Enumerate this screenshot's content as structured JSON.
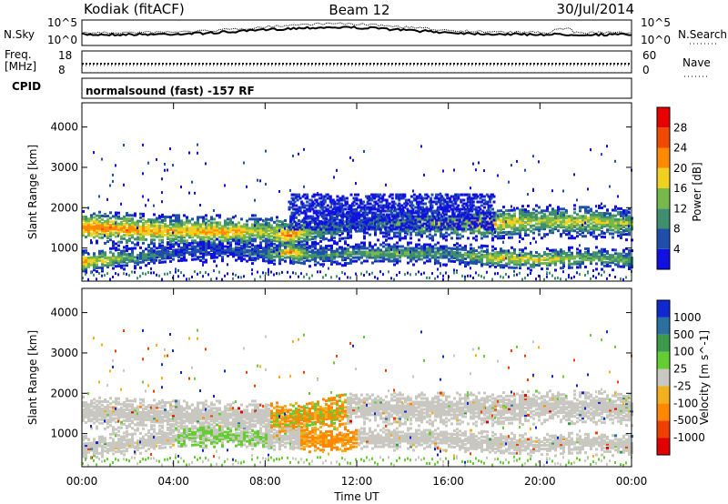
{
  "header": {
    "station": "Kodiak (fitACF)",
    "beam": "Beam 12",
    "date": "30/Jul/2014"
  },
  "strips": {
    "nsky_label": "N.Sky",
    "nsearch_label": "N.Search",
    "nsky_ticks": [
      "10^5",
      "10^0"
    ],
    "nsearch_ticks": [
      "10^5",
      "10^0"
    ],
    "freq_label_1": "Freq.",
    "freq_label_2": "[MHz]",
    "freq_ticks": [
      "18",
      "8"
    ],
    "nave_label": "Nave",
    "nave_ticks": [
      "60",
      "0"
    ],
    "cpid_label": "CPID",
    "cpid_text": "normalsound (fast) -157 RF"
  },
  "chart_data": [
    {
      "type": "heatmap",
      "panel": "power",
      "ylabel": "Slant Range [km]",
      "ylim": [
        180,
        4600
      ],
      "yticks": [
        "1000",
        "2000",
        "3000",
        "4000"
      ],
      "xlim": [
        "00:00",
        "24:00"
      ],
      "colorbar_label": "Power [dB]",
      "colorbar_ticks": [
        "4",
        "8",
        "12",
        "16",
        "20",
        "24",
        "28"
      ],
      "colors": [
        "#1010e0",
        "#1f4fa8",
        "#3f8f6f",
        "#76b84c",
        "#f0d020",
        "#ff8a00",
        "#f04a00",
        "#e80000"
      ],
      "bands": [
        {
          "name": "upper",
          "x": [
            0,
            2,
            4,
            6,
            8,
            9,
            10,
            12,
            14,
            16,
            18,
            20,
            22,
            24
          ],
          "center_km": [
            1550,
            1500,
            1450,
            1450,
            1450,
            1350,
            1500,
            1650,
            1650,
            1650,
            1650,
            1700,
            1700,
            1650
          ],
          "width_km": 300,
          "peak_db": [
            26,
            25,
            22,
            24,
            18,
            26,
            16,
            10,
            16,
            20,
            22,
            18,
            20,
            16
          ]
        },
        {
          "name": "lower",
          "x": [
            0,
            2,
            4,
            6,
            8,
            9,
            10,
            12,
            14,
            16,
            18,
            20,
            22,
            24
          ],
          "center_km": [
            700,
            800,
            900,
            1000,
            900,
            950,
            850,
            900,
            900,
            900,
            800,
            750,
            800,
            750
          ],
          "width_km": 200,
          "peak_db": [
            24,
            14,
            8,
            8,
            10,
            26,
            12,
            14,
            16,
            12,
            20,
            20,
            16,
            14
          ]
        }
      ]
    },
    {
      "type": "heatmap",
      "panel": "velocity",
      "ylabel": "Slant Range [km]",
      "ylim": [
        180,
        4600
      ],
      "yticks": [
        "1000",
        "2000",
        "3000",
        "4000"
      ],
      "xlim": [
        "00:00",
        "24:00"
      ],
      "xticks": [
        "00:00",
        "04:00",
        "08:00",
        "12:00",
        "16:00",
        "20:00",
        "00:00"
      ],
      "xlabel": "Time UT",
      "colorbar_label": "Velocity [m s^-1]",
      "colorbar_ticks": [
        "1000",
        "500",
        "100",
        "25",
        "-25",
        "-100",
        "-500",
        "-1000"
      ],
      "colors": [
        "#1028d0",
        "#2a6fa0",
        "#3c9a4a",
        "#66cc33",
        "#c8c8c0",
        "#f0b020",
        "#ff8800",
        "#f04000",
        "#e00000"
      ],
      "ground_scatter_color": "#c8c8c0"
    }
  ]
}
